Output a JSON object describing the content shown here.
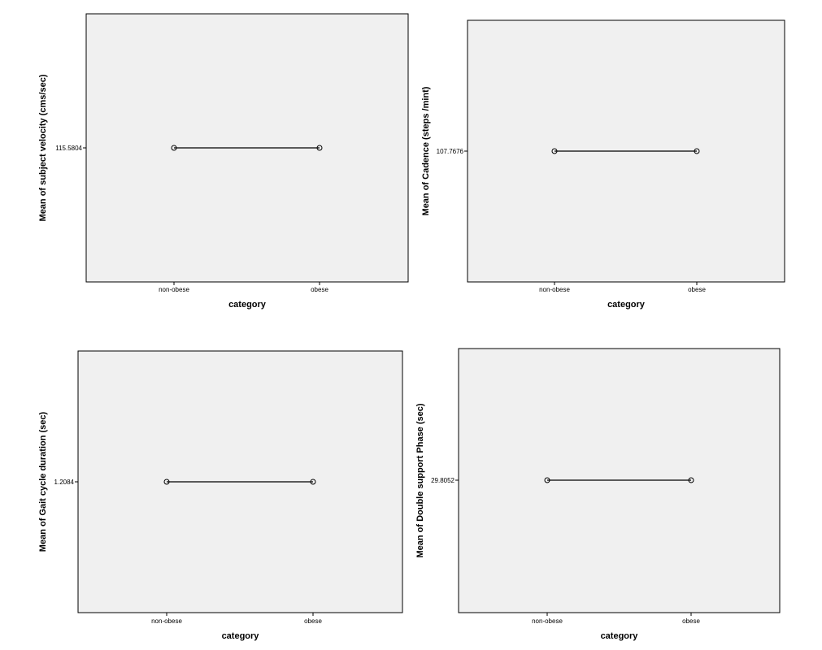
{
  "chart_data": [
    {
      "type": "line",
      "xlabel": "category",
      "ylabel": "Mean of subject velocity (cms/sec)",
      "categories": [
        "non-obese",
        "obese"
      ],
      "values": [
        115.5804,
        115.5804
      ],
      "yticks": [
        "115.5804"
      ],
      "grid": false,
      "background": "#f0f0f0"
    },
    {
      "type": "line",
      "xlabel": "category",
      "ylabel": "Mean of Cadence (steps /mint)",
      "categories": [
        "non-obese",
        "obese"
      ],
      "values": [
        107.7676,
        107.7676
      ],
      "yticks": [
        "107.7676"
      ],
      "grid": false,
      "background": "#f0f0f0"
    },
    {
      "type": "line",
      "xlabel": "category",
      "ylabel": "Mean of Gait cycle duration (sec)",
      "categories": [
        "non-obese",
        "obese"
      ],
      "values": [
        1.2084,
        1.2084
      ],
      "yticks": [
        "1.2084"
      ],
      "grid": false,
      "background": "#f0f0f0"
    },
    {
      "type": "line",
      "xlabel": "category",
      "ylabel": "Mean of Double support Phase (sec)",
      "categories": [
        "non-obese",
        "obese"
      ],
      "values": [
        29.8052,
        29.8052
      ],
      "yticks": [
        "29.8052"
      ],
      "grid": false,
      "background": "#f0f0f0"
    }
  ]
}
